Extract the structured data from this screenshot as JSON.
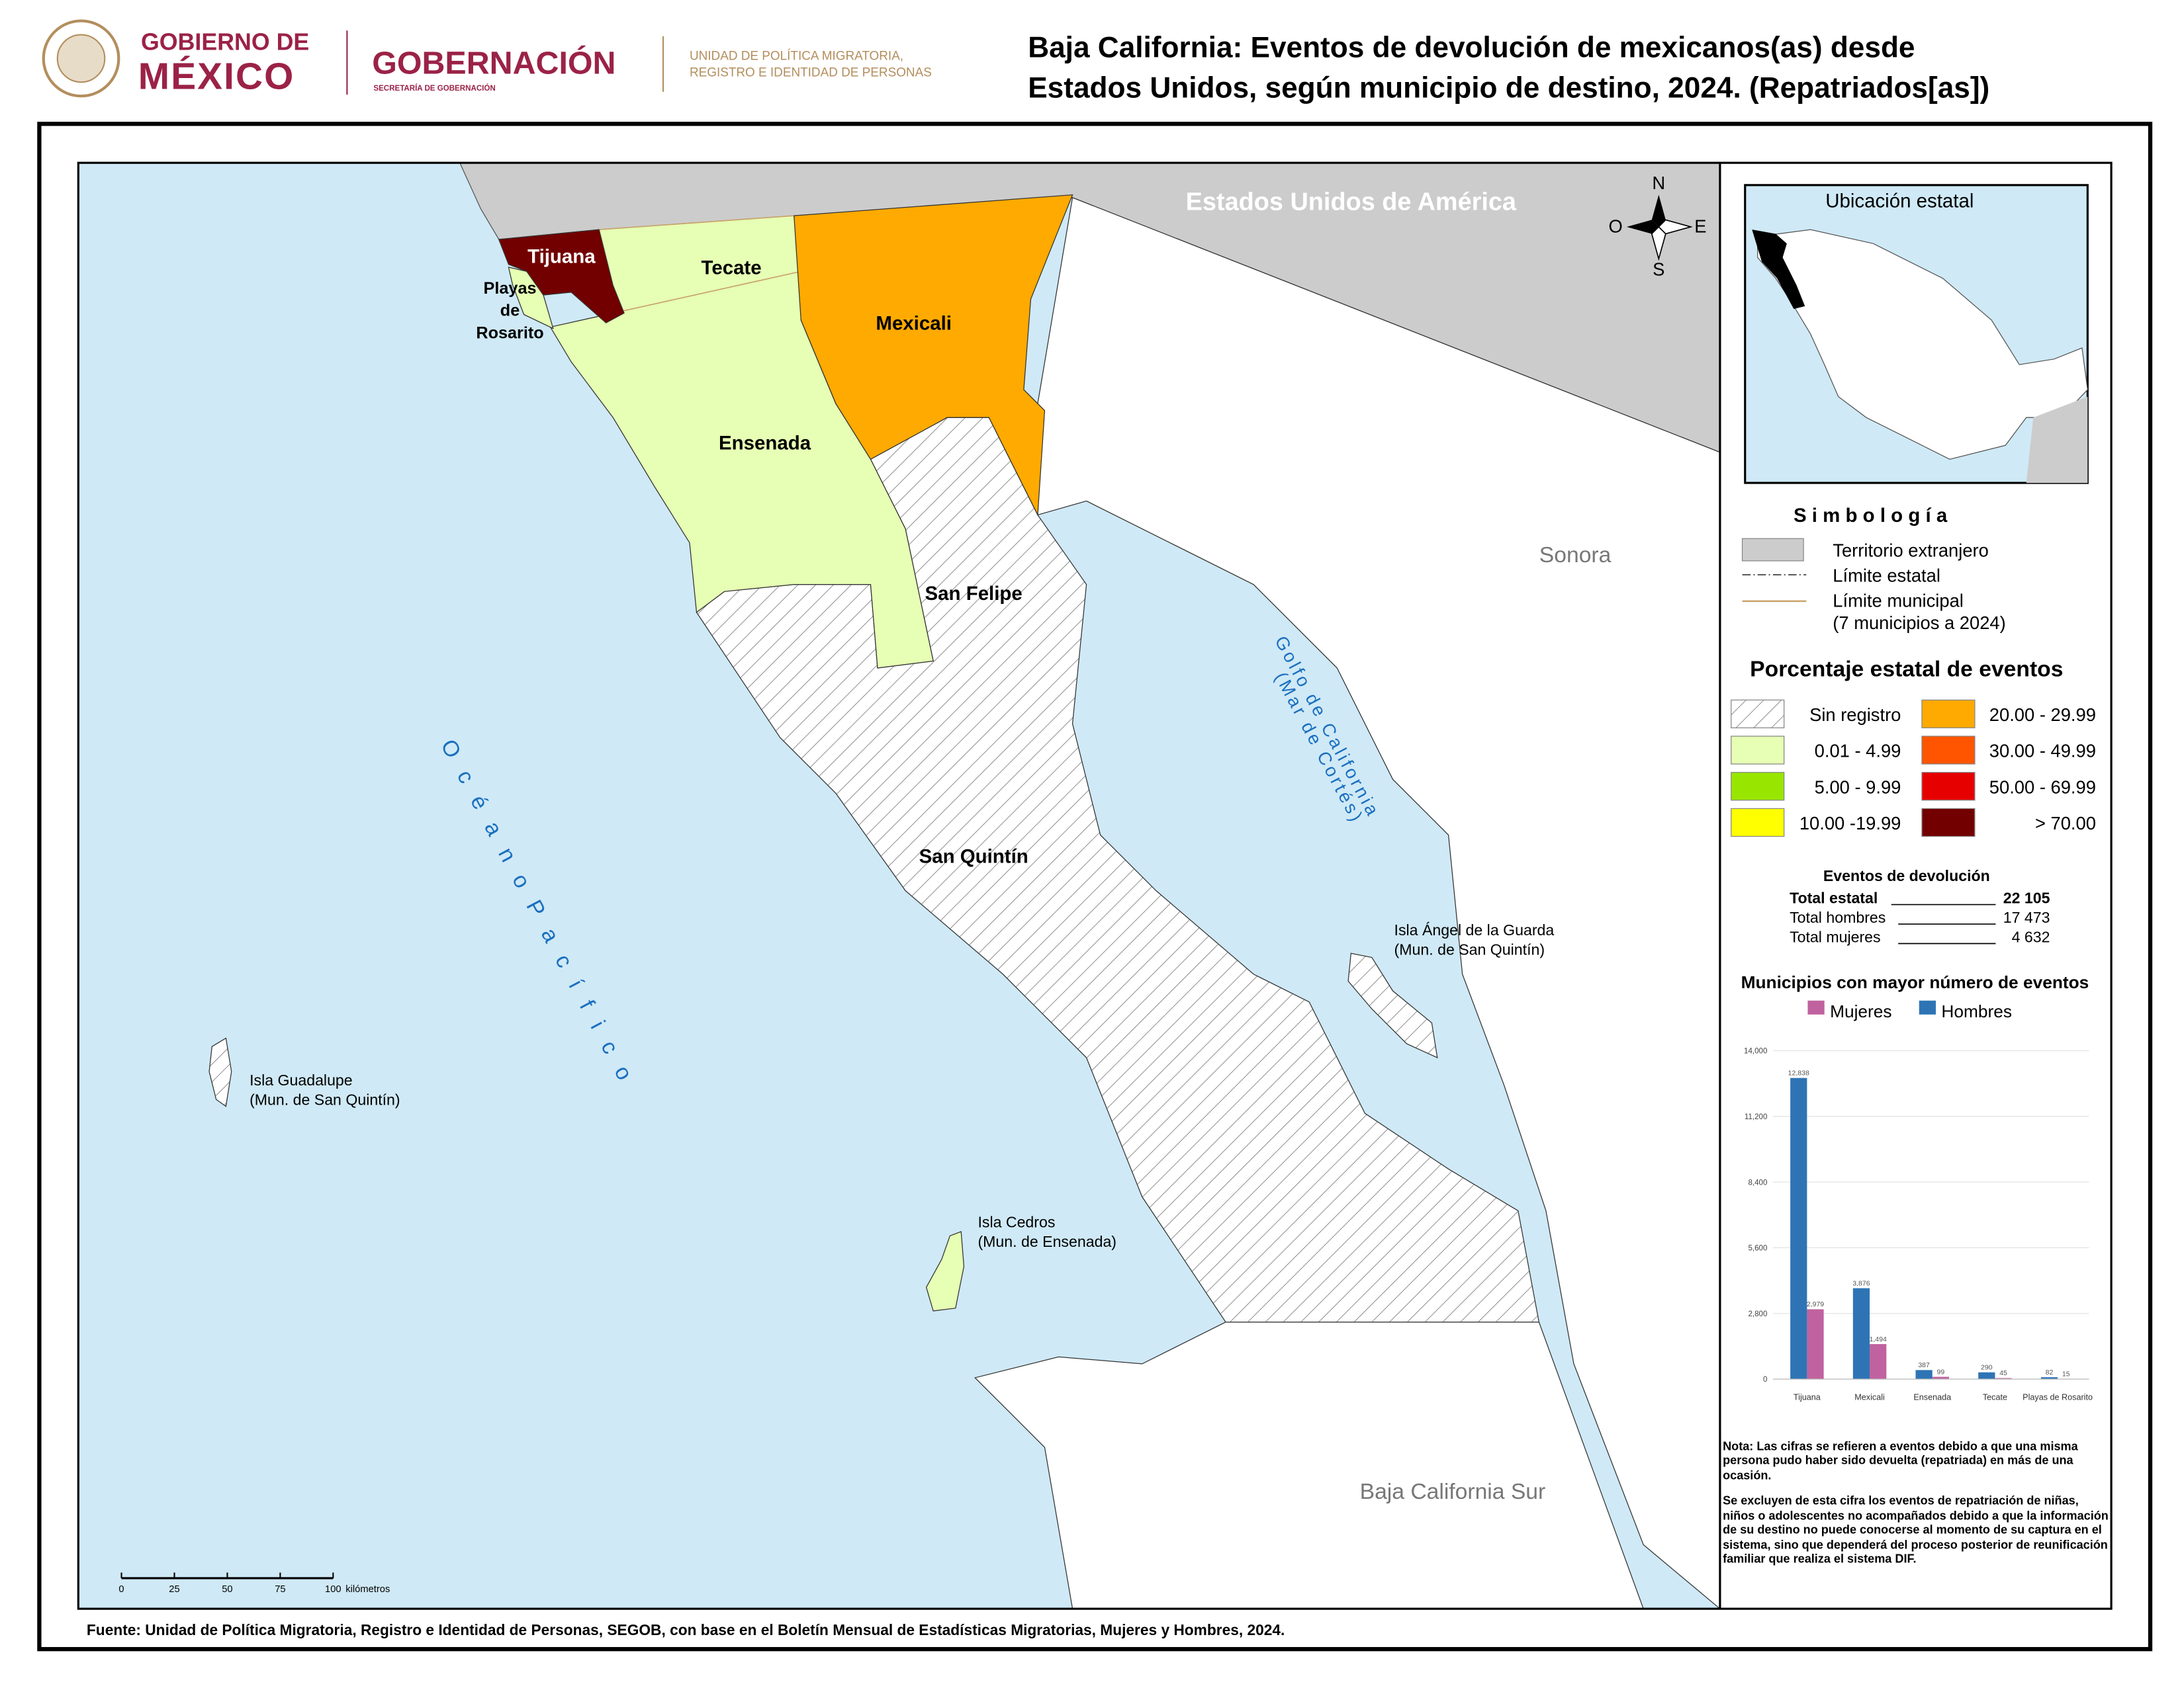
{
  "header": {
    "gov_line1": "GOBIERNO DE",
    "gov_line2": "MÉXICO",
    "ministry": "GOBERNACIÓN",
    "ministry_sub": "SECRETARÍA DE GOBERNACIÓN",
    "unit_line1": "UNIDAD DE POLÍTICA MIGRATORIA,",
    "unit_line2": "REGISTRO E IDENTIDAD DE PERSONAS",
    "title_lines": [
      "Baja California: Eventos de devolución de mexicanos(as) desde",
      "Estados Unidos, según municipio de destino, 2024. (Repatriados[as])"
    ]
  },
  "map": {
    "country": "Estados Unidos de América",
    "state_east": "Sonora",
    "state_south": "Baja California Sur",
    "ocean": "O c é a n o   P a c í f i c o",
    "gulf_line1": "Golfo de California",
    "gulf_line2": "(Mar de Cortés)",
    "municipalities": [
      "Tijuana",
      "Tecate",
      "Mexicali",
      "Ensenada",
      "San Felipe",
      "San Quintín"
    ],
    "rosarito_lines": [
      "Playas",
      "de",
      "Rosarito"
    ],
    "islands": [
      {
        "name": "Isla Guadalupe",
        "mun": "(Mun. de San Quintín)"
      },
      {
        "name": "Isla Cedros",
        "mun": "(Mun. de Ensenada)"
      },
      {
        "name": "Isla Ángel de la Guarda",
        "mun": "(Mun. de San Quintín)"
      }
    ],
    "compass": {
      "n": "N",
      "s": "S",
      "e": "E",
      "w": "O"
    },
    "scale_labels": [
      "0",
      "25",
      "50",
      "75",
      "100"
    ],
    "scale_unit": "kilómetros"
  },
  "inset": {
    "title": "Ubicación estatal"
  },
  "legend": {
    "title": "S i m b o l o g í a",
    "foreign": "Territorio extranjero",
    "state_limit": "Límite estatal",
    "mun_limit": "Límite municipal",
    "mun_note": "(7 municipios a 2024)",
    "classes_title": "Porcentaje estatal de eventos",
    "classes": [
      {
        "label": "Sin registro",
        "color": "hatch"
      },
      {
        "label": "0.01  - 4.99",
        "color": "#e6ffb4"
      },
      {
        "label": "5.00  - 9.99",
        "color": "#98e600"
      },
      {
        "label": "10.00 -19.99",
        "color": "#ffff00"
      },
      {
        "label": "20.00 - 29.99",
        "color": "#ffaa00"
      },
      {
        "label": "30.00 - 49.99",
        "color": "#ff5500"
      },
      {
        "label": "50.00 - 69.99",
        "color": "#e60000"
      },
      {
        "label": "> 70.00",
        "color": "#730000"
      }
    ]
  },
  "totals": {
    "title": "Eventos de devolución",
    "rows": [
      {
        "label": "Total estatal",
        "value": "22 105"
      },
      {
        "label": "Total hombres",
        "value": "17 473"
      },
      {
        "label": "Total mujeres",
        "value": "4 632"
      }
    ]
  },
  "chart_data": {
    "type": "bar",
    "title": "Municipios con mayor número de eventos",
    "categories": [
      "Tijuana",
      "Mexicali",
      "Ensenada",
      "Tecate",
      "Playas de Rosarito"
    ],
    "series": [
      {
        "name": "Mujeres",
        "color": "#c0629f",
        "values": [
          2979,
          1494,
          99,
          45,
          15
        ],
        "value_labels": [
          "2,979",
          "1,494",
          "99",
          "45",
          "15"
        ]
      },
      {
        "name": "Hombres",
        "color": "#2e74b5",
        "values": [
          12838,
          3876,
          387,
          290,
          82
        ],
        "value_labels": [
          "12,838",
          "3,876",
          "387",
          "290",
          "82"
        ]
      }
    ],
    "ylim": [
      0,
      14000
    ],
    "yticks": [
      0,
      {
        "value": 2800,
        "label": "2,800"
      },
      {
        "value": 5600,
        "label": "5,600"
      },
      {
        "value": 8400,
        "label": "8,400"
      },
      {
        "value": 11200,
        "label": "11,200"
      },
      {
        "value": 14000,
        "label": "14,000"
      }
    ],
    "grid": true
  },
  "notes": [
    "Nota: Las cifras se refieren a eventos debido a que una misma persona pudo haber sido devuelta (repatriada) en más de una ocasión.",
    "Se excluyen de esta cifra los eventos de repatriación de niñas, niños o adolescentes no acompañados debido a que la información de su destino no puede conocerse al momento de su captura en el sistema, sino que dependerá del proceso posterior de reunificación familiar que realiza el sistema DIF."
  ],
  "source": "Fuente: Unidad de Política Migratoria, Registro e Identidad de Personas, SEGOB, con base en el Boletín Mensual de Estadísticas Migratorias, Mujeres y Hombres, 2024."
}
